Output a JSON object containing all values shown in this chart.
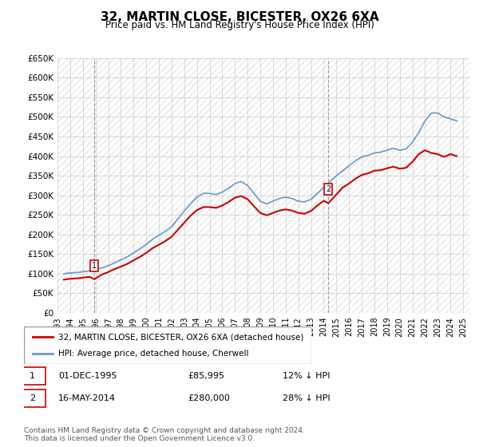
{
  "title": "32, MARTIN CLOSE, BICESTER, OX26 6XA",
  "subtitle": "Price paid vs. HM Land Registry's House Price Index (HPI)",
  "title_fontsize": 11,
  "subtitle_fontsize": 9,
  "ylabel_ticks": [
    "£0",
    "£50K",
    "£100K",
    "£150K",
    "£200K",
    "£250K",
    "£300K",
    "£350K",
    "£400K",
    "£450K",
    "£500K",
    "£550K",
    "£600K",
    "£650K"
  ],
  "ytick_vals": [
    0,
    50000,
    100000,
    150000,
    200000,
    250000,
    300000,
    350000,
    400000,
    450000,
    500000,
    550000,
    600000,
    650000
  ],
  "ylim": [
    0,
    650000
  ],
  "xlim_start": 1993.0,
  "xlim_end": 2025.5,
  "sale1_x": 1995.917,
  "sale1_y": 85995,
  "sale1_label": "1",
  "sale2_x": 2014.37,
  "sale2_y": 280000,
  "sale2_label": "2",
  "red_color": "#cc0000",
  "blue_color": "#6699cc",
  "marker_box_color": "#cc0000",
  "bg_color": "#ffffff",
  "grid_color": "#cccccc",
  "hatch_color": "#e8e8e8",
  "legend_line1": "32, MARTIN CLOSE, BICESTER, OX26 6XA (detached house)",
  "legend_line2": "HPI: Average price, detached house, Cherwell",
  "annotation1_date": "01-DEC-1995",
  "annotation1_price": "£85,995",
  "annotation1_hpi": "12% ↓ HPI",
  "annotation2_date": "16-MAY-2014",
  "annotation2_price": "£280,000",
  "annotation2_hpi": "28% ↓ HPI",
  "footer": "Contains HM Land Registry data © Crown copyright and database right 2024.\nThis data is licensed under the Open Government Licence v3.0.",
  "hpi_data_x": [
    1993.5,
    1994.0,
    1994.5,
    1995.0,
    1995.5,
    1996.0,
    1996.5,
    1997.0,
    1997.5,
    1998.0,
    1998.5,
    1999.0,
    1999.5,
    2000.0,
    2000.5,
    2001.0,
    2001.5,
    2002.0,
    2002.5,
    2003.0,
    2003.5,
    2004.0,
    2004.5,
    2005.0,
    2005.5,
    2006.0,
    2006.5,
    2007.0,
    2007.5,
    2008.0,
    2008.5,
    2009.0,
    2009.5,
    2010.0,
    2010.5,
    2011.0,
    2011.5,
    2012.0,
    2012.5,
    2013.0,
    2013.5,
    2014.0,
    2014.5,
    2015.0,
    2015.5,
    2016.0,
    2016.5,
    2017.0,
    2017.5,
    2018.0,
    2018.5,
    2019.0,
    2019.5,
    2020.0,
    2020.5,
    2021.0,
    2021.5,
    2022.0,
    2022.5,
    2023.0,
    2023.5,
    2024.0,
    2024.5
  ],
  "hpi_data_y": [
    100000,
    102000,
    103000,
    105000,
    107000,
    110000,
    115000,
    120000,
    128000,
    135000,
    143000,
    153000,
    163000,
    175000,
    188000,
    198000,
    208000,
    220000,
    240000,
    260000,
    278000,
    295000,
    305000,
    305000,
    302000,
    308000,
    318000,
    330000,
    335000,
    325000,
    305000,
    285000,
    278000,
    285000,
    292000,
    295000,
    292000,
    285000,
    283000,
    290000,
    305000,
    320000,
    335000,
    350000,
    362000,
    375000,
    388000,
    398000,
    402000,
    408000,
    410000,
    415000,
    420000,
    415000,
    418000,
    435000,
    460000,
    490000,
    510000,
    510000,
    500000,
    495000,
    490000
  ],
  "price_data_x": [
    1993.5,
    1994.0,
    1994.5,
    1995.0,
    1995.5,
    1995.917,
    1996.5,
    1997.0,
    1997.5,
    1998.0,
    1998.5,
    1999.0,
    1999.5,
    2000.0,
    2000.5,
    2001.0,
    2001.5,
    2002.0,
    2002.5,
    2003.0,
    2003.5,
    2004.0,
    2004.5,
    2005.0,
    2005.5,
    2006.0,
    2006.5,
    2007.0,
    2007.5,
    2008.0,
    2008.5,
    2009.0,
    2009.5,
    2010.0,
    2010.5,
    2011.0,
    2011.5,
    2012.0,
    2012.5,
    2013.0,
    2013.5,
    2014.0,
    2014.37,
    2014.8,
    2015.5,
    2016.0,
    2016.5,
    2017.0,
    2017.5,
    2018.0,
    2018.5,
    2019.0,
    2019.5,
    2020.0,
    2020.5,
    2021.0,
    2021.5,
    2022.0,
    2022.5,
    2023.0,
    2023.5,
    2024.0,
    2024.5
  ],
  "price_data_y": [
    85000,
    87000,
    88000,
    90000,
    92000,
    85995,
    98000,
    104000,
    112000,
    118000,
    125000,
    134000,
    143000,
    153000,
    165000,
    174000,
    183000,
    194000,
    212000,
    230000,
    248000,
    262000,
    270000,
    270000,
    268000,
    274000,
    283000,
    294000,
    298000,
    290000,
    272000,
    255000,
    249000,
    255000,
    261000,
    264000,
    261000,
    255000,
    253000,
    260000,
    274000,
    286000,
    280000,
    295000,
    320000,
    330000,
    342000,
    352000,
    356000,
    363000,
    364000,
    369000,
    373000,
    368000,
    370000,
    385000,
    405000,
    415000,
    408000,
    405000,
    398000,
    405000,
    400000
  ]
}
